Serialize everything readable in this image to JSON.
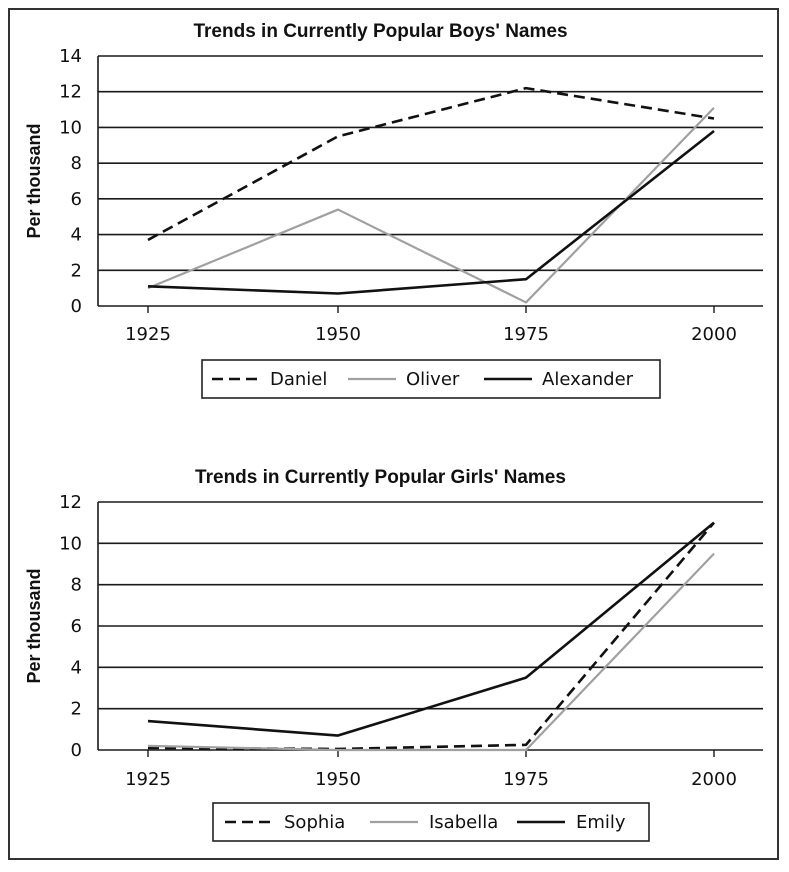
{
  "colors": {
    "black": "#111111",
    "gray": "#a0a0a0",
    "grid": "#1a1a1a"
  },
  "chart_data": [
    {
      "type": "line",
      "title": "Trends in Currently Popular Boys' Names",
      "ylabel": "Per thousand",
      "xlabel": "",
      "categories": [
        "1925",
        "1950",
        "1975",
        "2000"
      ],
      "ylim": [
        0,
        14
      ],
      "yticks": [
        0,
        2,
        4,
        6,
        8,
        10,
        12,
        14
      ],
      "grid": true,
      "legend_position": "bottom",
      "series": [
        {
          "name": "Daniel",
          "values": [
            3.7,
            9.5,
            12.2,
            10.5
          ],
          "style": "dashed",
          "color": "#111111"
        },
        {
          "name": "Oliver",
          "values": [
            1.0,
            5.4,
            0.2,
            11.1
          ],
          "style": "solid",
          "color": "#a0a0a0"
        },
        {
          "name": "Alexander",
          "values": [
            1.1,
            0.7,
            1.5,
            9.8
          ],
          "style": "solid",
          "color": "#111111"
        }
      ]
    },
    {
      "type": "line",
      "title": "Trends in Currently Popular Girls' Names",
      "ylabel": "Per thousand",
      "xlabel": "",
      "categories": [
        "1925",
        "1950",
        "1975",
        "2000"
      ],
      "ylim": [
        0,
        12
      ],
      "yticks": [
        0,
        2,
        4,
        6,
        8,
        10,
        12
      ],
      "grid": true,
      "legend_position": "bottom",
      "series": [
        {
          "name": "Sophia",
          "values": [
            0.1,
            0.05,
            0.25,
            11.0
          ],
          "style": "dashed",
          "color": "#111111"
        },
        {
          "name": "Isabella",
          "values": [
            0.2,
            0.0,
            0.0,
            9.5
          ],
          "style": "solid",
          "color": "#a0a0a0"
        },
        {
          "name": "Emily",
          "values": [
            1.4,
            0.7,
            3.5,
            11.0
          ],
          "style": "solid",
          "color": "#111111"
        }
      ]
    }
  ]
}
